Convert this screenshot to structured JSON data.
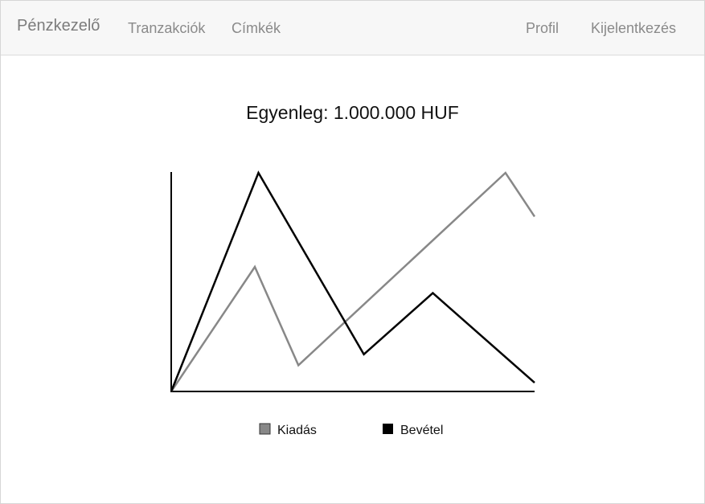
{
  "navbar": {
    "brand": "Pénzkezelő",
    "links_left": [
      "Tranzakciók",
      "Címkék"
    ],
    "links_right": [
      "Profil",
      "Kijelentkezés"
    ]
  },
  "balance": {
    "text": "Egyenleg: 1.000.000 HUF"
  },
  "colors": {
    "kiadas": "#888888",
    "bevetel": "#000000"
  },
  "chart_data": {
    "type": "line",
    "title": "",
    "xlabel": "",
    "ylabel": "",
    "xlim": [
      0,
      100
    ],
    "ylim": [
      0,
      100
    ],
    "legend": "bottom",
    "grid": false,
    "series": [
      {
        "name": "Kiadás",
        "x": [
          0,
          23,
          35,
          92,
          100
        ],
        "y": [
          0,
          57,
          12,
          100,
          80
        ]
      },
      {
        "name": "Bevétel",
        "x": [
          0,
          24,
          53,
          72,
          100
        ],
        "y": [
          0,
          100,
          17,
          45,
          4
        ]
      }
    ]
  }
}
